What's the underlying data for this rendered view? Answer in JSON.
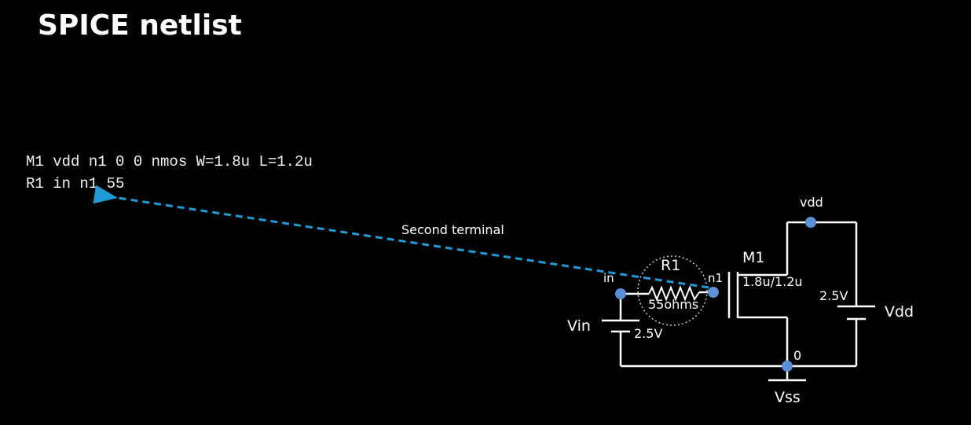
{
  "slide": {
    "title": "SPICE netlist"
  },
  "netlist": {
    "lines": [
      "M1 vdd n1 0 0 nmos W=1.8u L=1.2u",
      "R1 in n1 55"
    ]
  },
  "annotation": {
    "arrow_label": "Second terminal"
  },
  "schematic": {
    "resistor_name": "R1",
    "resistor_value": "55ohms",
    "transistor_name": "M1",
    "transistor_size": "1.8u/1.2u",
    "node_in": "in",
    "node_n1": "n1",
    "node_vdd": "vdd",
    "node_0": "0",
    "source_vin_name": "Vin",
    "source_vin_value": "2.5V",
    "source_vdd_name": "Vdd",
    "source_vdd_value": "2.5V",
    "ground_name": "Vss"
  },
  "colors": {
    "background": "#000000",
    "text": "#ffffff",
    "wire": "#ffffff",
    "node_dot": "#5b8fd6",
    "arrow": "#1f9ad6"
  }
}
